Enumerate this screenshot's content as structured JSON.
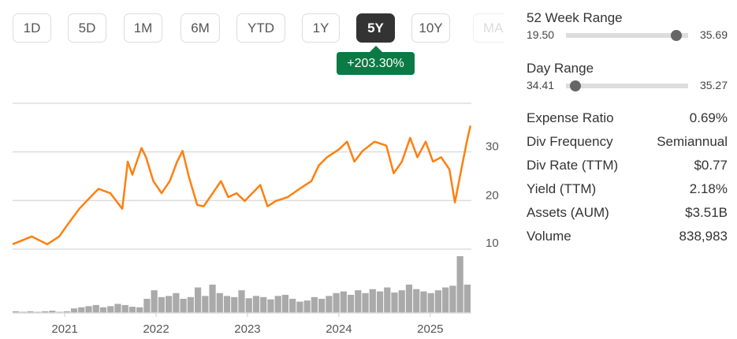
{
  "range_buttons": [
    {
      "label": "1D"
    },
    {
      "label": "5D"
    },
    {
      "label": "1M"
    },
    {
      "label": "6M"
    },
    {
      "label": "YTD"
    },
    {
      "label": "1Y"
    },
    {
      "label": "5Y",
      "active": true
    },
    {
      "label": "10Y"
    },
    {
      "label": "MAX"
    }
  ],
  "change_badge": "+203.30%",
  "colors": {
    "line": "#ff7f0e",
    "volume": "#aaaaaa",
    "badge": "#0b7a45",
    "active_button": "#333333"
  },
  "week52": {
    "title": "52 Week Range",
    "low": "19.50",
    "high": "35.69",
    "position": 0.9
  },
  "day_range": {
    "title": "Day Range",
    "low": "34.41",
    "high": "35.27",
    "position": 0.08
  },
  "stats": [
    {
      "label": "Expense Ratio",
      "value": "0.69%"
    },
    {
      "label": "Div Frequency",
      "value": "Semiannual"
    },
    {
      "label": "Div Rate (TTM)",
      "value": "$0.77"
    },
    {
      "label": "Yield (TTM)",
      "value": "2.18%"
    },
    {
      "label": "Assets (AUM)",
      "value": "$3.51B"
    },
    {
      "label": "Volume",
      "value": "838,983"
    }
  ],
  "chart_data": {
    "type": "line",
    "ylim": [
      10,
      40
    ],
    "yticks": [
      10,
      20,
      30,
      40
    ],
    "ytick_labels": [
      "10",
      "20",
      "30",
      ""
    ],
    "xlim": [
      2020.43,
      2025.45
    ],
    "xticks": [
      2021,
      2022,
      2023,
      2024,
      2025
    ],
    "xtick_labels": [
      "2021",
      "2022",
      "2023",
      "2024",
      "2025"
    ],
    "grid": true,
    "series": [
      {
        "x": [
          2020.43,
          2020.64,
          2020.81,
          2020.94,
          2021.03,
          2021.16,
          2021.24,
          2021.37,
          2021.5,
          2021.63,
          2021.69,
          2021.74,
          2021.84,
          2021.89,
          2021.97,
          2022.06,
          2022.15,
          2022.23,
          2022.29,
          2022.36,
          2022.45,
          2022.52,
          2022.62,
          2022.71,
          2022.79,
          2022.88,
          2022.97,
          2023.14,
          2023.22,
          2023.31,
          2023.44,
          2023.57,
          2023.7,
          2023.78,
          2023.87,
          2024.0,
          2024.09,
          2024.17,
          2024.26,
          2024.39,
          2024.52,
          2024.6,
          2024.69,
          2024.78,
          2024.86,
          2024.95,
          2025.03,
          2025.12,
          2025.21,
          2025.27,
          2025.34,
          2025.4,
          2025.44
        ],
        "y": [
          11.0,
          12.6,
          11.0,
          12.6,
          15.0,
          18.3,
          19.9,
          22.4,
          21.5,
          18.3,
          28.0,
          25.3,
          30.8,
          28.9,
          24.0,
          21.5,
          24.0,
          28.0,
          30.2,
          24.8,
          19.1,
          18.8,
          21.5,
          24.0,
          20.7,
          21.5,
          19.9,
          23.2,
          18.8,
          19.9,
          20.7,
          22.4,
          24.0,
          27.2,
          28.9,
          30.5,
          32.1,
          28.0,
          30.2,
          32.1,
          31.3,
          25.6,
          28.0,
          32.9,
          28.9,
          32.1,
          28.0,
          28.9,
          26.4,
          19.6,
          26.4,
          32.1,
          35.4
        ]
      }
    ],
    "volume": [
      3,
      2,
      3,
      2,
      3,
      4,
      2,
      3,
      8,
      10,
      12,
      14,
      10,
      12,
      16,
      14,
      11,
      10,
      25,
      40,
      28,
      30,
      35,
      25,
      28,
      45,
      30,
      50,
      35,
      30,
      28,
      40,
      26,
      30,
      28,
      24,
      30,
      32,
      25,
      20,
      22,
      28,
      25,
      30,
      35,
      38,
      32,
      40,
      35,
      42,
      38,
      45,
      36,
      40,
      50,
      42,
      38,
      35,
      40,
      45,
      48,
      100,
      50
    ]
  }
}
